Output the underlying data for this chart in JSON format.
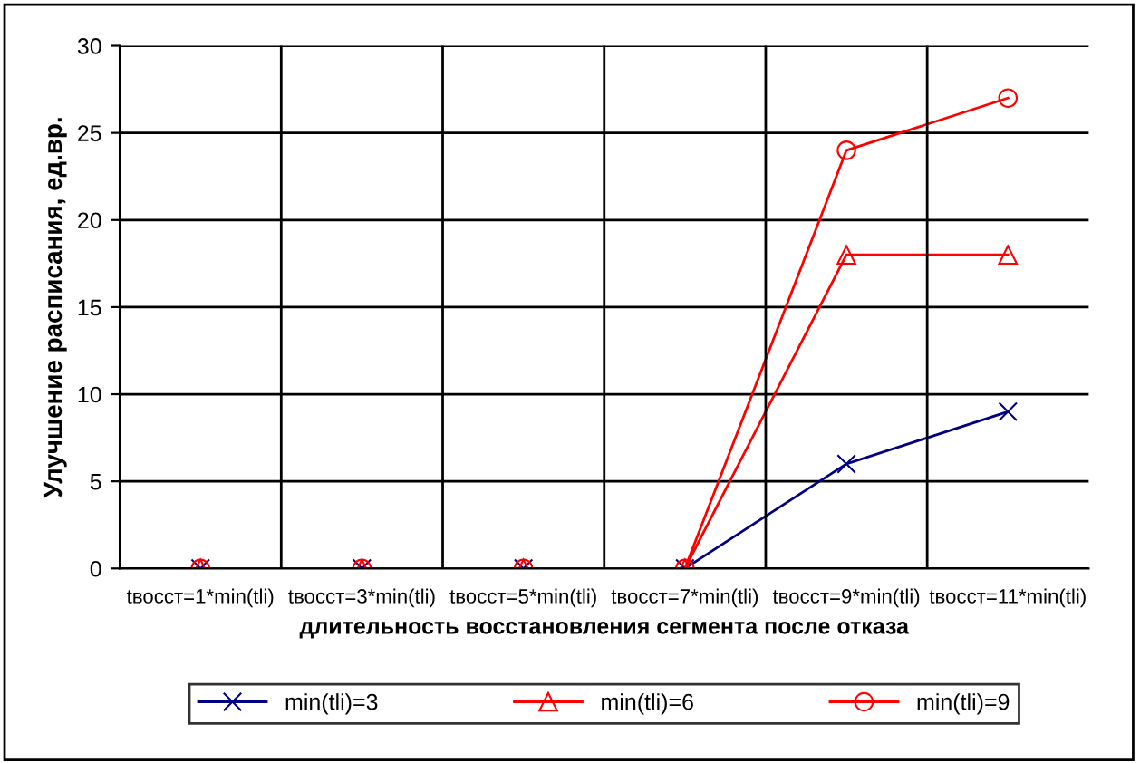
{
  "chart_data": {
    "type": "line",
    "ylabel": "Улучшение расписания, ед.вр.",
    "xlabel": "длительность восстановления сегмента после отказа",
    "categories": [
      "tвосст=1*min(tli)",
      "tвосст=3*min(tli)",
      "tвосст=5*min(tli)",
      "tвосст=7*min(tli)",
      "tвосст=9*min(tli)",
      "tвосст=11*min(tli)"
    ],
    "series": [
      {
        "name": "min(tli)=3",
        "color": "#000080",
        "marker": "cross",
        "values": [
          0,
          0,
          0,
          0,
          6,
          9
        ]
      },
      {
        "name": "min(tli)=6",
        "color": "#ff0000",
        "marker": "triangle",
        "values": [
          0,
          0,
          0,
          0,
          18,
          18
        ]
      },
      {
        "name": "min(tli)=9",
        "color": "#ff0000",
        "marker": "circle",
        "values": [
          0,
          0,
          0,
          0,
          24,
          27
        ]
      }
    ],
    "ylim": [
      0,
      30
    ],
    "yticks": [
      0,
      5,
      10,
      15,
      20,
      25,
      30
    ],
    "grid": true,
    "legend": "bottom"
  }
}
